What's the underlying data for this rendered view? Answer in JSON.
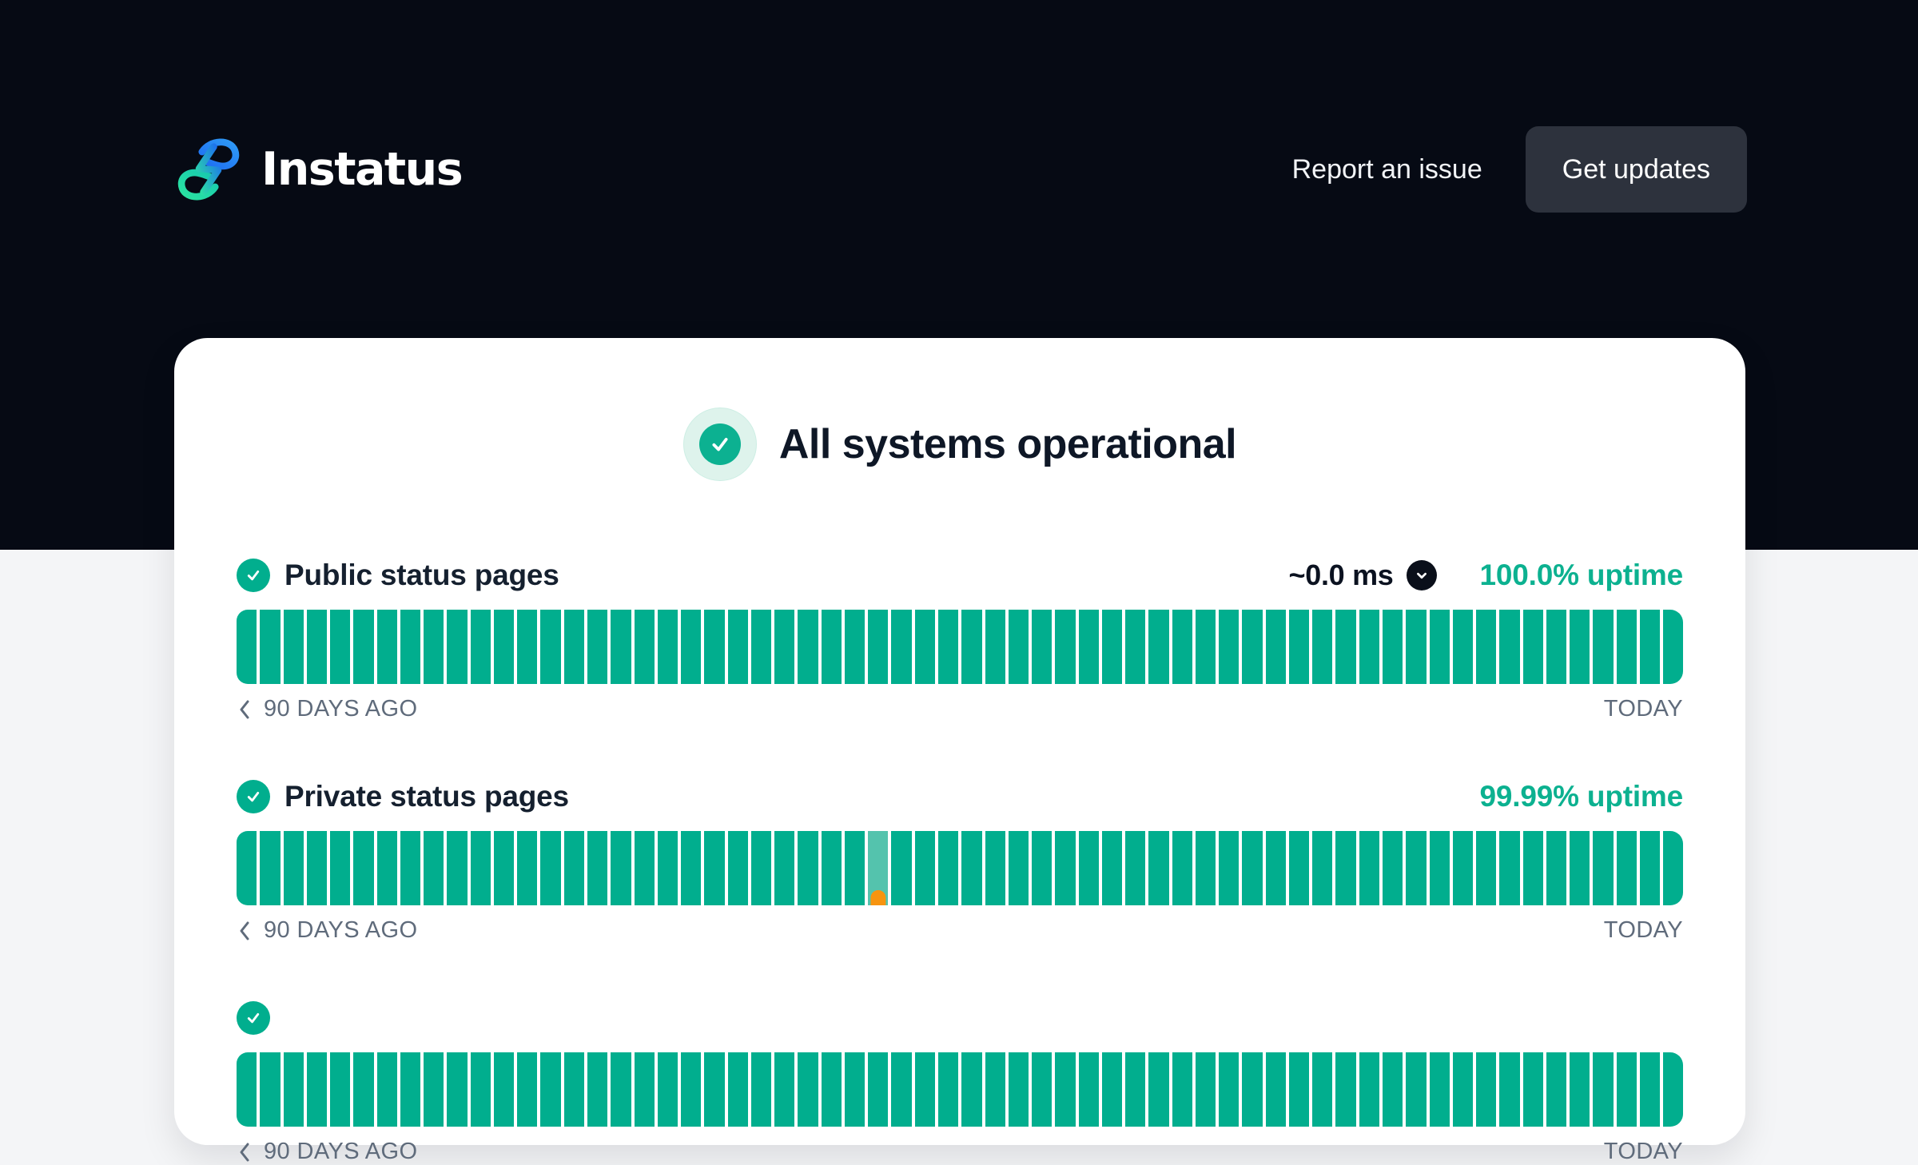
{
  "nav": {
    "logo_text": "Instatus",
    "report_link_label": "Report an issue",
    "get_updates_label": "Get updates"
  },
  "status_banner": {
    "title": "All systems operational"
  },
  "timeline": {
    "start_label": "90 DAYS AGO",
    "end_label": "TODAY"
  },
  "components": [
    {
      "name": "Public status pages",
      "latency": "~0.0 ms",
      "uptime": "100.0% uptime",
      "history": {
        "segments": 62,
        "incidents": []
      }
    },
    {
      "name": "Private status pages",
      "latency": null,
      "uptime": "99.99% uptime",
      "history": {
        "segments": 62,
        "incidents": [
          {
            "index": 27,
            "level": "partial"
          }
        ]
      }
    },
    {
      "name": "",
      "latency": null,
      "uptime": "",
      "history": {
        "segments": 62,
        "incidents": []
      }
    }
  ],
  "icons": {
    "check": "checkmark",
    "chevron_down": "chevron-down",
    "chevron_left": "chevron-left",
    "logo_mark": "instatus-s-bolt"
  },
  "colors": {
    "header_bg": "#060a14",
    "page_bg": "#f4f5f7",
    "card_bg": "#ffffff",
    "bar_operational": "#01ae8e",
    "bar_degraded": "#54c3ad",
    "incident_orange": "#f7940f",
    "uptime_text": "#0cb190",
    "muted_label": "#5f6b7b",
    "button_bg": "#2d323d",
    "logo_green": "#2be3a0",
    "logo_blue": "#1d6cf2"
  }
}
